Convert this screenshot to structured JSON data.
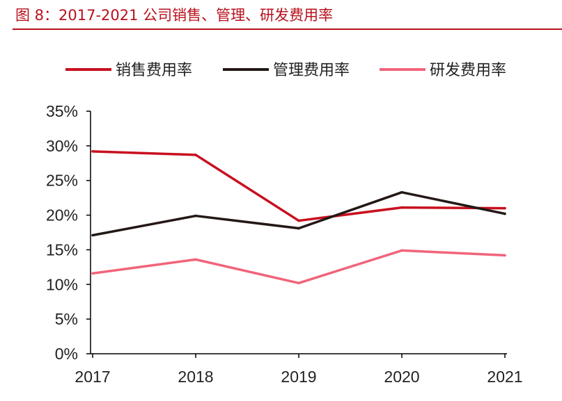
{
  "figure": {
    "title": "图 8：2017-2021 公司销售、管理、研发费用率"
  },
  "chart_data": {
    "type": "line",
    "title": "图 8：2017-2021 公司销售、管理、研发费用率",
    "xlabel": "",
    "ylabel": "",
    "x": [
      "2017",
      "2018",
      "2019",
      "2020",
      "2021"
    ],
    "ylim": [
      0,
      35
    ],
    "yticks": [
      "0%",
      "5%",
      "10%",
      "15%",
      "20%",
      "25%",
      "30%",
      "35%"
    ],
    "ytick_values": [
      0,
      5,
      10,
      15,
      20,
      25,
      30,
      35
    ],
    "grid": false,
    "legend_position": "top",
    "series": [
      {
        "name": "销售费用率",
        "values": [
          29.2,
          28.7,
          19.2,
          21.1,
          21.0
        ],
        "color": "#c8101e"
      },
      {
        "name": "管理费用率",
        "values": [
          17.1,
          19.9,
          18.1,
          23.3,
          20.2
        ],
        "color": "#231815"
      },
      {
        "name": "研发费用率",
        "values": [
          11.6,
          13.6,
          10.2,
          14.9,
          14.2
        ],
        "color": "#f1647a"
      }
    ]
  }
}
